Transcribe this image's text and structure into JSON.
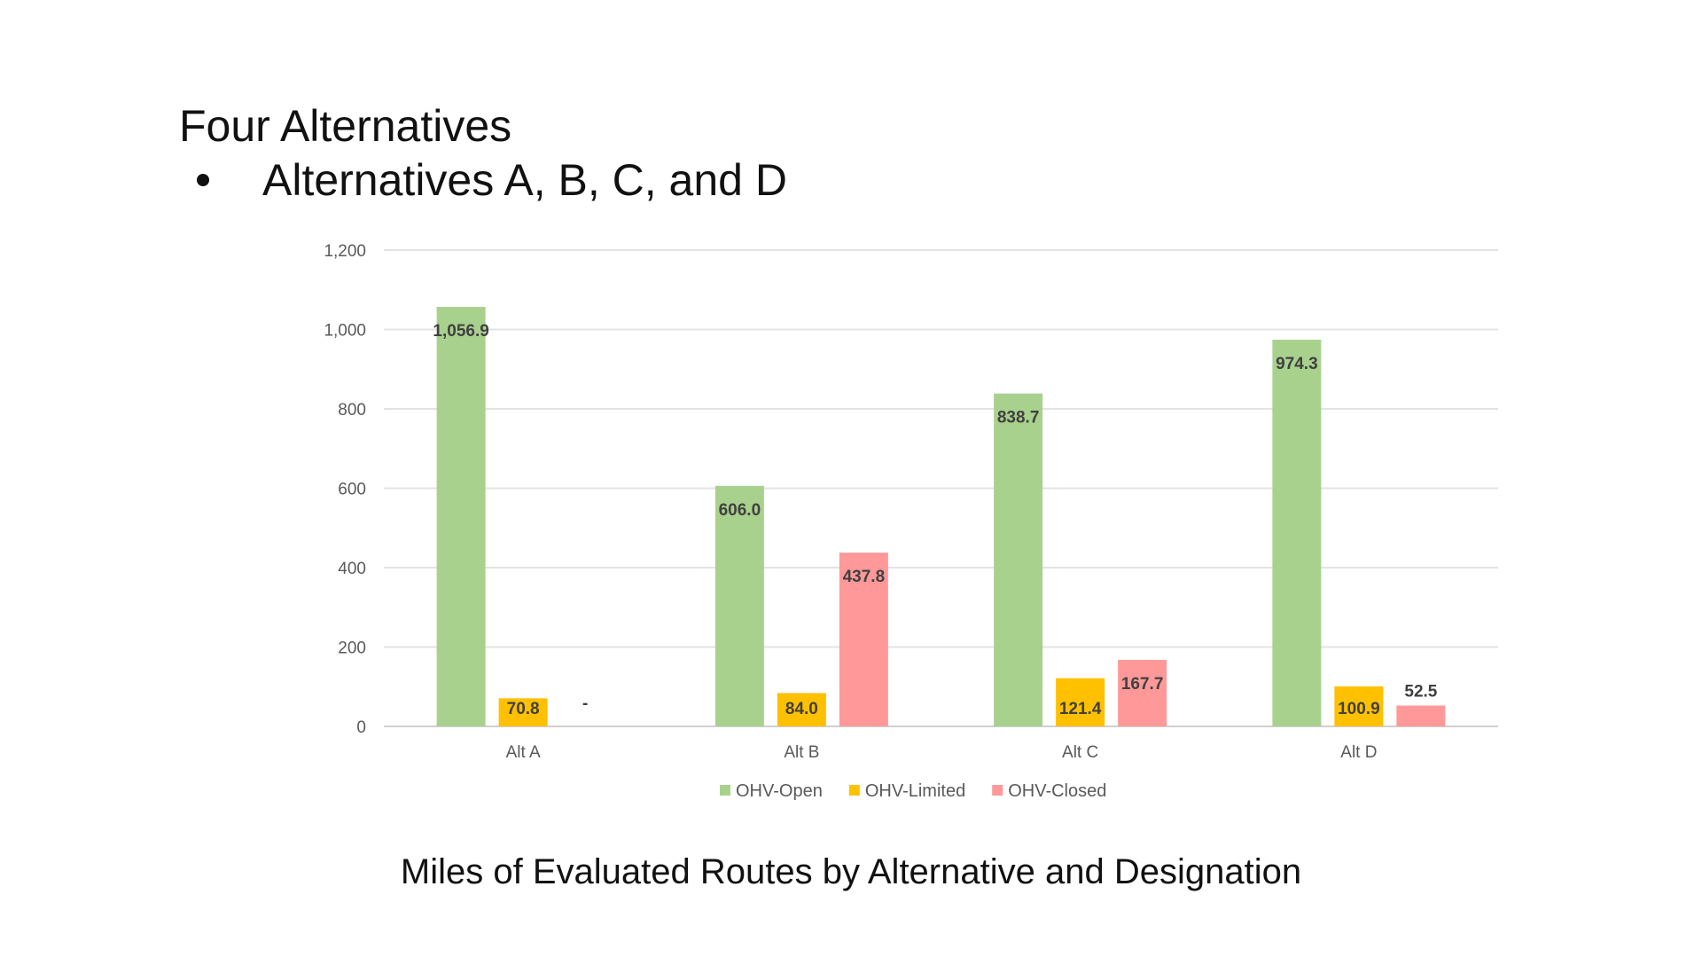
{
  "slide": {
    "title": "Four Alternatives",
    "bullet": "Alternatives A, B, C, and D",
    "caption": "Miles of Evaluated Routes by Alternative and Designation"
  },
  "chart_data": {
    "type": "bar",
    "categories": [
      "Alt A",
      "Alt B",
      "Alt C",
      "Alt D"
    ],
    "series": [
      {
        "name": "OHV-Open",
        "color": "#a9d18e",
        "values": [
          1056.9,
          606.0,
          838.7,
          974.3
        ],
        "labels": [
          "1,056.9",
          "606.0",
          "838.7",
          "974.3"
        ]
      },
      {
        "name": "OHV-Limited",
        "color": "#ffc000",
        "values": [
          70.8,
          84.0,
          121.4,
          100.9
        ],
        "labels": [
          "70.8",
          "84.0",
          "121.4",
          "100.9"
        ]
      },
      {
        "name": "OHV-Closed",
        "color": "#ff9999",
        "values": [
          0,
          437.8,
          167.7,
          52.5
        ],
        "labels": [
          "-",
          "437.8",
          "167.7",
          "52.5"
        ]
      }
    ],
    "ylim": [
      0,
      1200
    ],
    "yticks": [
      0,
      200,
      400,
      600,
      800,
      1000,
      1200
    ],
    "ytick_labels": [
      "0",
      "200",
      "400",
      "600",
      "800",
      "1,000",
      "1,200"
    ],
    "grid": true,
    "legend_position": "bottom",
    "xlabel": "",
    "ylabel": ""
  }
}
